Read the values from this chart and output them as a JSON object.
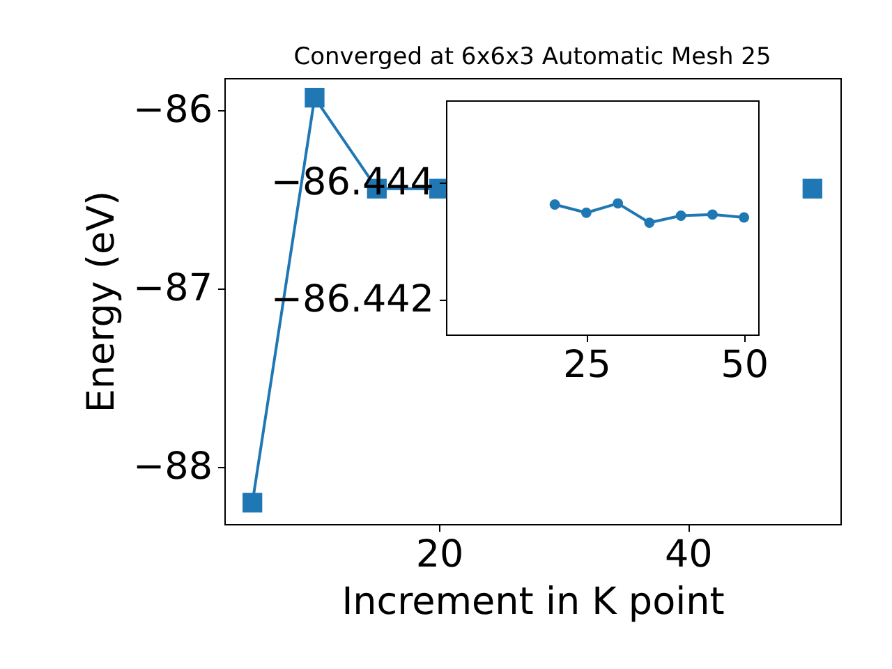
{
  "chart_data": [
    {
      "type": "line",
      "title": "Converged at 6x6x3 Automatic Mesh 25",
      "xlabel": "Increment in K point",
      "ylabel": "Energy (eV)",
      "x": [
        5,
        10,
        15,
        20,
        25,
        30,
        35,
        40,
        45,
        50
      ],
      "series": [
        {
          "color": "#1f77b4",
          "values": [
            -88.2,
            -85.93,
            -86.44,
            -86.44,
            null,
            null,
            null,
            null,
            null,
            -86.44
          ]
        }
      ],
      "marker": "square",
      "xlim": [
        2.75,
        52.25
      ],
      "ylim": [
        -88.32,
        -85.82
      ],
      "xticks": [
        20,
        40
      ],
      "yticks": [
        {
          "value": -88,
          "label": "−88"
        },
        {
          "value": -87,
          "label": "−87"
        },
        {
          "value": -86,
          "label": "−86"
        }
      ]
    },
    {
      "type": "line",
      "x": [
        20,
        25,
        30,
        35,
        40,
        45,
        50
      ],
      "series": [
        {
          "color": "#1f77b4",
          "values": [
            -86.44362,
            -86.44348,
            -86.44364,
            -86.44331,
            -86.44343,
            -86.44345,
            -86.4434
          ]
        }
      ],
      "marker": "circle",
      "xlim": [
        2.75,
        52.25
      ],
      "ylim": [
        -86.4414,
        -86.4454
      ],
      "xticks": [
        25,
        50
      ],
      "yticks": [
        {
          "value": -86.442,
          "label": "−86.442"
        },
        {
          "value": -86.444,
          "label": "−86.444"
        }
      ]
    }
  ]
}
